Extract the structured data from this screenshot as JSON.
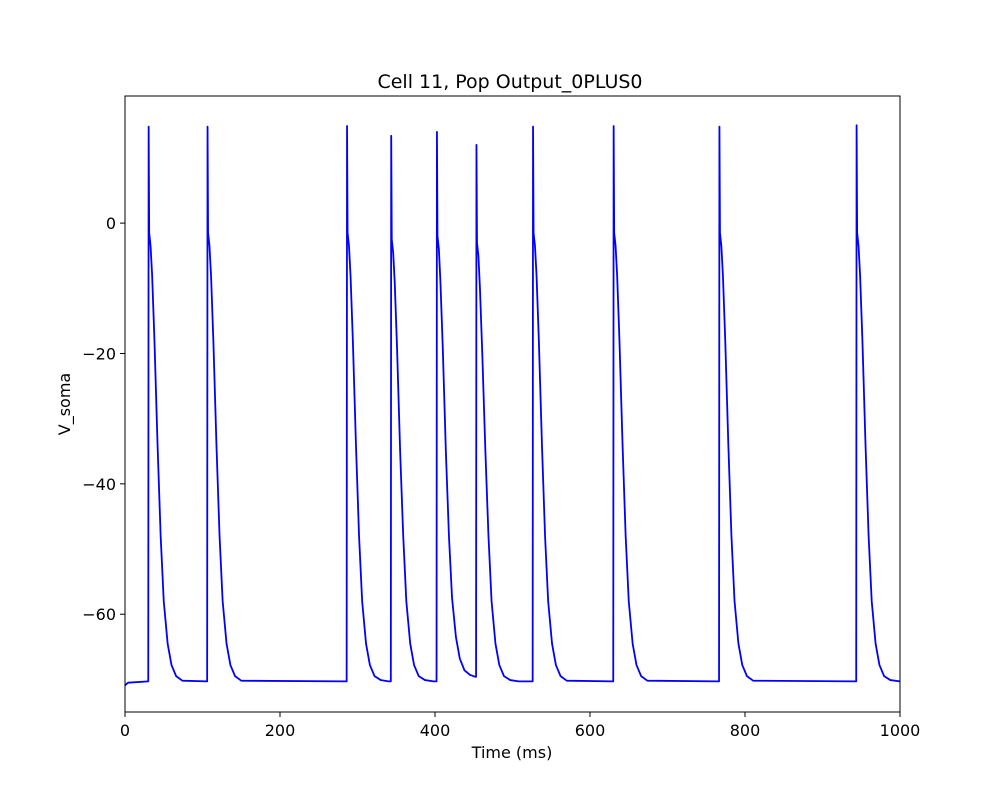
{
  "chart_data": {
    "type": "line",
    "title": "Cell 11, Pop Output_0PLUS0",
    "xlabel": "Time (ms)",
    "ylabel": "V_soma",
    "xlim": [
      0,
      1000
    ],
    "ylim": [
      -75,
      19.5
    ],
    "x_ticks": [
      0,
      200,
      400,
      600,
      800,
      1000
    ],
    "y_ticks": [
      -60,
      -40,
      -20,
      0
    ],
    "grid": false,
    "legend": "none",
    "colors": {
      "line": "#0000ff",
      "axes": "#000000",
      "background": "#ffffff"
    },
    "resting_potential": -70.3,
    "initial_value": -70.9,
    "spike_times": [
      30.5,
      106.5,
      286.5,
      343.5,
      402.5,
      453.5,
      526.5,
      630.5,
      767,
      944
    ],
    "spike_peaks": [
      14.8,
      14.8,
      14.9,
      13.4,
      14.0,
      12.0,
      14.8,
      14.9,
      14.8,
      15.0
    ],
    "series": [
      {
        "values": [
          [
            0,
            -70.9
          ],
          [
            4,
            -70.5
          ],
          [
            30.0,
            -70.3
          ],
          [
            30.5,
            14.8
          ],
          [
            31.2,
            -1.5
          ],
          [
            33,
            -3.5
          ],
          [
            35,
            -8
          ],
          [
            38,
            -18
          ],
          [
            42,
            -34
          ],
          [
            46,
            -48
          ],
          [
            50,
            -58
          ],
          [
            55,
            -64.5
          ],
          [
            60,
            -67.8
          ],
          [
            66,
            -69.5
          ],
          [
            74,
            -70.2
          ],
          [
            106.0,
            -70.3
          ],
          [
            106.5,
            14.8
          ],
          [
            107.2,
            -1.5
          ],
          [
            109,
            -3.5
          ],
          [
            111,
            -8
          ],
          [
            114,
            -18
          ],
          [
            118,
            -34
          ],
          [
            122,
            -48
          ],
          [
            126,
            -58
          ],
          [
            131,
            -64.5
          ],
          [
            136,
            -67.8
          ],
          [
            142,
            -69.5
          ],
          [
            150,
            -70.2
          ],
          [
            286.0,
            -70.3
          ],
          [
            286.5,
            14.9
          ],
          [
            287.2,
            -1.5
          ],
          [
            289,
            -3.5
          ],
          [
            291,
            -8
          ],
          [
            294,
            -18
          ],
          [
            298,
            -34
          ],
          [
            302,
            -48
          ],
          [
            306,
            -58
          ],
          [
            311,
            -64.5
          ],
          [
            316,
            -67.8
          ],
          [
            322,
            -69.5
          ],
          [
            330,
            -70.1
          ],
          [
            340,
            -70.3
          ],
          [
            343.0,
            -70.3
          ],
          [
            343.5,
            13.4
          ],
          [
            344.2,
            -2.5
          ],
          [
            346,
            -4.5
          ],
          [
            348,
            -9
          ],
          [
            351,
            -19
          ],
          [
            355,
            -35
          ],
          [
            359,
            -48
          ],
          [
            363,
            -58
          ],
          [
            368,
            -64.5
          ],
          [
            373,
            -67.8
          ],
          [
            379,
            -69.5
          ],
          [
            387,
            -70.1
          ],
          [
            398,
            -70.3
          ],
          [
            402.0,
            -70.3
          ],
          [
            402.5,
            14.0
          ],
          [
            403.2,
            -2
          ],
          [
            405,
            -4
          ],
          [
            407,
            -9
          ],
          [
            410,
            -19
          ],
          [
            414,
            -35
          ],
          [
            418,
            -48
          ],
          [
            422,
            -57.5
          ],
          [
            427,
            -63.5
          ],
          [
            432,
            -66.8
          ],
          [
            438,
            -68.6
          ],
          [
            445,
            -69.3
          ],
          [
            452,
            -69.6
          ],
          [
            453.0,
            -69.6
          ],
          [
            453.5,
            12.0
          ],
          [
            454.2,
            -3
          ],
          [
            456,
            -5
          ],
          [
            458,
            -10
          ],
          [
            461,
            -20
          ],
          [
            465,
            -35
          ],
          [
            469,
            -48
          ],
          [
            473,
            -58
          ],
          [
            478,
            -64.5
          ],
          [
            483,
            -67.8
          ],
          [
            489,
            -69.5
          ],
          [
            497,
            -70.1
          ],
          [
            508,
            -70.3
          ],
          [
            526.0,
            -70.3
          ],
          [
            526.5,
            14.8
          ],
          [
            527.2,
            -1.5
          ],
          [
            529,
            -3.5
          ],
          [
            531,
            -8
          ],
          [
            534,
            -18
          ],
          [
            538,
            -34
          ],
          [
            542,
            -48
          ],
          [
            546,
            -58
          ],
          [
            551,
            -64.5
          ],
          [
            556,
            -67.8
          ],
          [
            562,
            -69.5
          ],
          [
            570,
            -70.2
          ],
          [
            630.0,
            -70.3
          ],
          [
            630.5,
            14.9
          ],
          [
            631.2,
            -1.5
          ],
          [
            633,
            -3.5
          ],
          [
            635,
            -8
          ],
          [
            638,
            -18
          ],
          [
            642,
            -34
          ],
          [
            646,
            -48
          ],
          [
            650,
            -58
          ],
          [
            655,
            -64.5
          ],
          [
            660,
            -67.8
          ],
          [
            666,
            -69.5
          ],
          [
            674,
            -70.2
          ],
          [
            766.5,
            -70.3
          ],
          [
            767,
            14.8
          ],
          [
            767.7,
            -1.5
          ],
          [
            769.5,
            -3.5
          ],
          [
            771.5,
            -8
          ],
          [
            774.5,
            -18
          ],
          [
            778.5,
            -34
          ],
          [
            782.5,
            -48
          ],
          [
            786.5,
            -58
          ],
          [
            791.5,
            -64.5
          ],
          [
            796.5,
            -67.8
          ],
          [
            802.5,
            -69.5
          ],
          [
            810.5,
            -70.2
          ],
          [
            943.5,
            -70.3
          ],
          [
            944,
            15.0
          ],
          [
            944.7,
            -1.5
          ],
          [
            946.5,
            -3.5
          ],
          [
            948.5,
            -8
          ],
          [
            951.5,
            -18
          ],
          [
            955.5,
            -34
          ],
          [
            959.5,
            -48
          ],
          [
            963.5,
            -58
          ],
          [
            968.5,
            -64.5
          ],
          [
            973.5,
            -67.8
          ],
          [
            979.5,
            -69.5
          ],
          [
            987.5,
            -70.1
          ],
          [
            1000,
            -70.3
          ]
        ]
      }
    ]
  }
}
